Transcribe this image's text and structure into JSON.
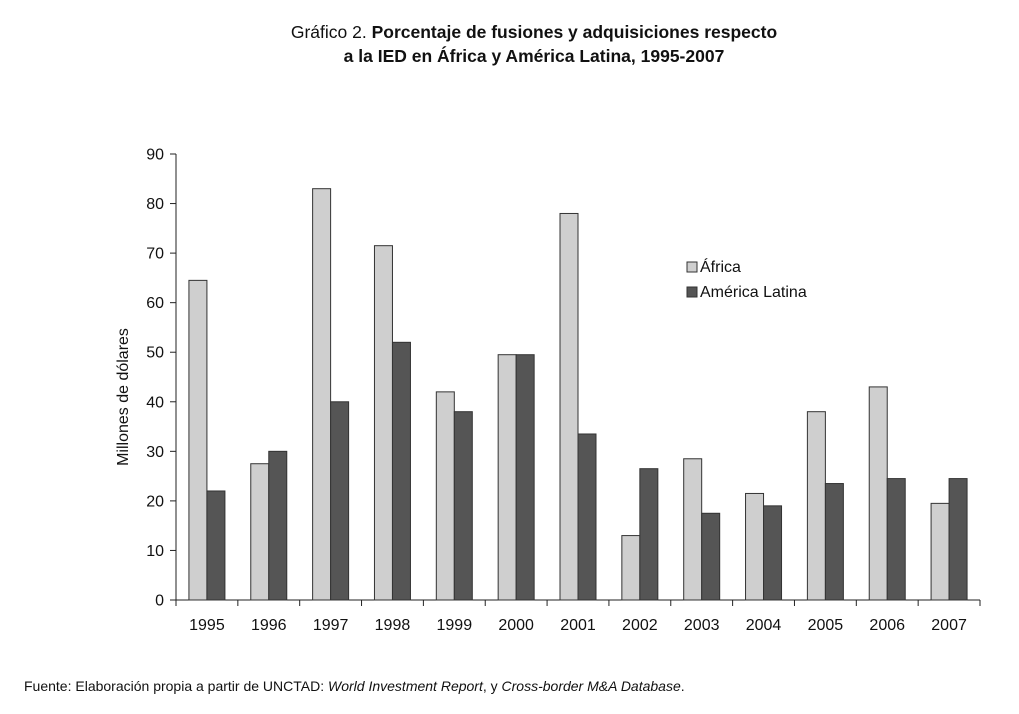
{
  "title": {
    "lead": "Gráfico 2.",
    "line1": "Porcentaje de fusiones y adquisiciones respecto",
    "line2": "a la IED en África y América Latina, 1995-2007"
  },
  "chart_data": {
    "type": "bar",
    "ylabel": "Millones de dólares",
    "xlabel": "",
    "ylim": [
      0,
      90
    ],
    "yticks": [
      0,
      10,
      20,
      30,
      40,
      50,
      60,
      70,
      80,
      90
    ],
    "categories": [
      "1995",
      "1996",
      "1997",
      "1998",
      "1999",
      "2000",
      "2001",
      "2002",
      "2003",
      "2004",
      "2005",
      "2006",
      "2007"
    ],
    "series": [
      {
        "name": "África",
        "color": "#cfcfcf",
        "values": [
          64.5,
          27.5,
          83,
          71.5,
          42,
          49.5,
          78,
          13,
          28.5,
          21.5,
          38,
          43,
          19.5
        ]
      },
      {
        "name": "América Latina",
        "color": "#555555",
        "values": [
          22,
          30,
          40,
          52,
          38,
          49.5,
          33.5,
          26.5,
          17.5,
          19,
          23.5,
          24.5,
          24.5
        ]
      }
    ],
    "grid": false,
    "legend_position": "top-right"
  },
  "source": {
    "prefix": "Fuente:",
    "text1": " Elaboración propia a partir de UNCTAD: ",
    "italic1": "World Investment Report",
    "text2": ", y ",
    "italic2": "Cross-border M&A Database",
    "text3": "."
  }
}
